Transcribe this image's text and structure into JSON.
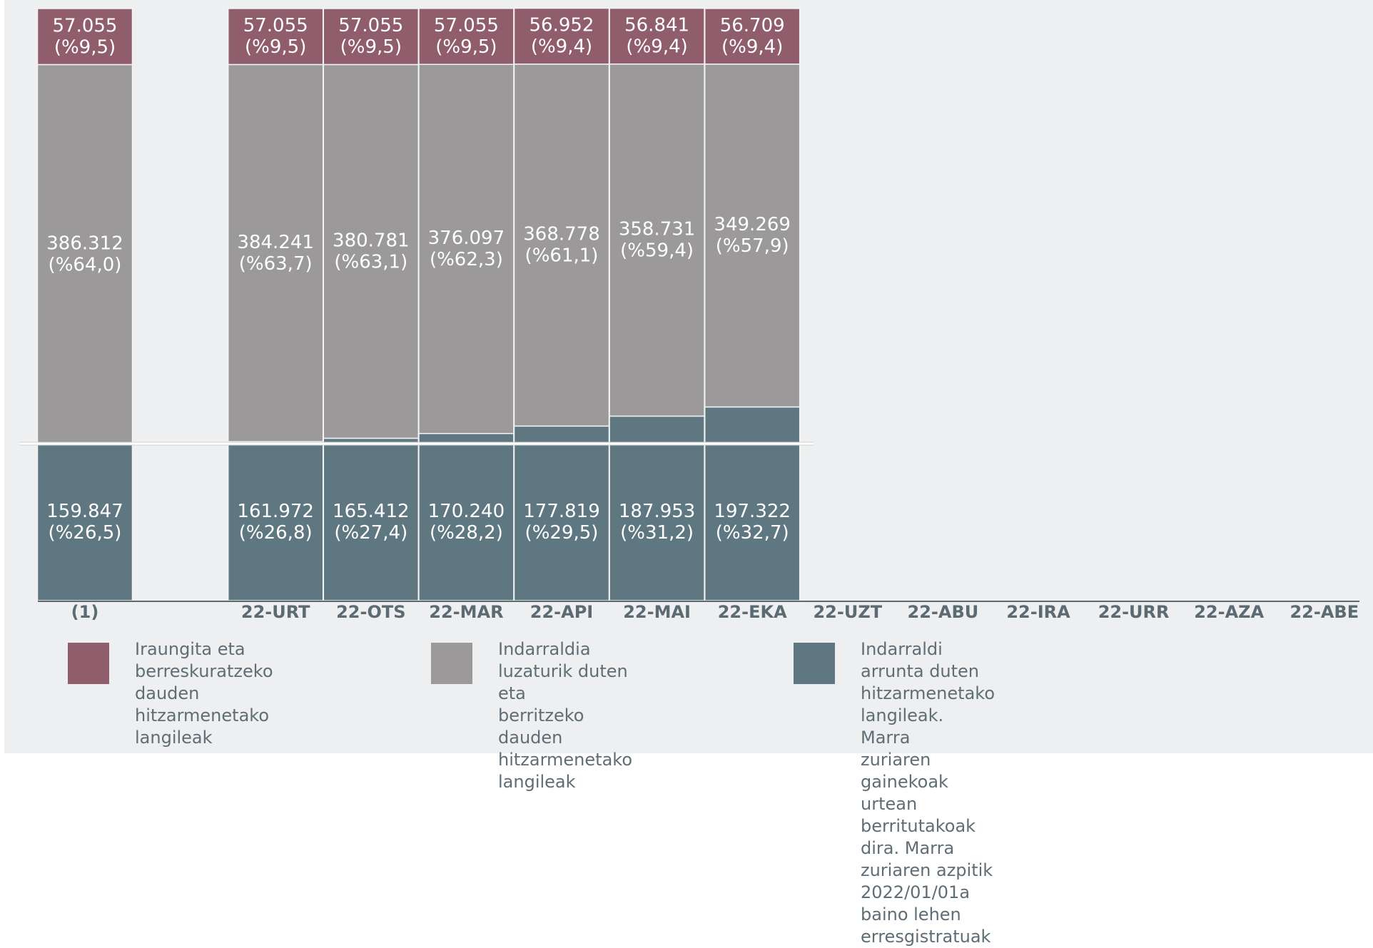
{
  "colors": {
    "expired": "#8f5d6b",
    "extended": "#9b999a",
    "ordinary": "#5e7780",
    "white_line": "#ffffff",
    "axis": "#5c6a72",
    "text": "#5f6d75"
  },
  "chart_data": {
    "type": "bar",
    "stacked": true,
    "categories": [
      "(1)",
      "",
      "22-URT",
      "22-OTS",
      "22-MAR",
      "22-API",
      "22-MAI",
      "22-EKA",
      "22-UZT",
      "22-ABU",
      "22-IRA",
      "22-URR",
      "22-AZA",
      "22-ABE"
    ],
    "series": [
      {
        "key": "ordinary",
        "values": [
          159847,
          null,
          161972,
          165412,
          170240,
          177819,
          187953,
          197322,
          null,
          null,
          null,
          null,
          null,
          null
        ],
        "labels": [
          [
            "159.847",
            "(%26,5)"
          ],
          null,
          [
            "161.972",
            "(%26,8)"
          ],
          [
            "165.412",
            "(%27,4)"
          ],
          [
            "170.240",
            "(%28,2)"
          ],
          [
            "177.819",
            "(%29,5)"
          ],
          [
            "187.953",
            "(%31,2)"
          ],
          [
            "197.322",
            "(%32,7)"
          ],
          null,
          null,
          null,
          null,
          null,
          null
        ]
      },
      {
        "key": "extended",
        "values": [
          386312,
          null,
          384241,
          380781,
          376097,
          368778,
          358731,
          349269,
          null,
          null,
          null,
          null,
          null,
          null
        ],
        "labels": [
          [
            "386.312",
            "(%64,0)"
          ],
          null,
          [
            "384.241",
            "(%63,7)"
          ],
          [
            "380.781",
            "(%63,1)"
          ],
          [
            "376.097",
            "(%62,3)"
          ],
          [
            "368.778",
            "(%61,1)"
          ],
          [
            "358.731",
            "(%59,4)"
          ],
          [
            "349.269",
            "(%57,9)"
          ],
          null,
          null,
          null,
          null,
          null,
          null
        ]
      },
      {
        "key": "expired",
        "values": [
          57055,
          null,
          57055,
          57055,
          57055,
          56952,
          56841,
          56709,
          null,
          null,
          null,
          null,
          null,
          null
        ],
        "labels": [
          [
            "57.055",
            "(%9,5)"
          ],
          null,
          [
            "57.055",
            "(%9,5)"
          ],
          [
            "57.055",
            "(%9,5)"
          ],
          [
            "57.055",
            "(%9,5)"
          ],
          [
            "56.952",
            "(%9,4)"
          ],
          [
            "56.841",
            "(%9,4)"
          ],
          [
            "56.709",
            "(%9,4)"
          ],
          null,
          null,
          null,
          null,
          null,
          null
        ]
      }
    ],
    "reference_line_value": 159847,
    "ylim": [
      0,
      603214
    ]
  },
  "legend": [
    {
      "key": "expired",
      "text": "Iraungita eta\nberreskuratzeko dauden\nhitzarmenetako langileak"
    },
    {
      "key": "extended",
      "text": "Indarraldia luzaturik duten eta\nberritzeko dauden\nhitzarmenetako langileak"
    },
    {
      "key": "ordinary",
      "text": "Indarraldi arrunta duten hitzarmenetako langileak. Marra\nzuriaren gainekoak urtean berritutakoak dira. Marra\nzuriaren azpitik 2022/01/01a baino lehen erresgistratuak"
    }
  ]
}
